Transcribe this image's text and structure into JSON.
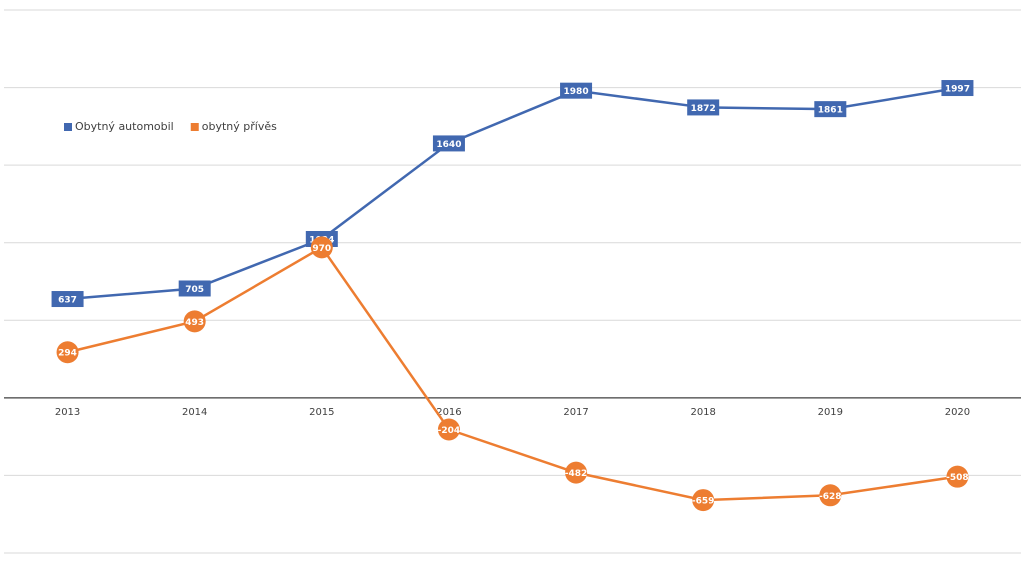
{
  "chart_data": {
    "type": "line",
    "categories": [
      "2013",
      "2014",
      "2015",
      "2016",
      "2017",
      "2018",
      "2019",
      "2020"
    ],
    "series": [
      {
        "name": "Obytný automobil",
        "color": "#4168b0",
        "values": [
          637,
          705,
          1024,
          1640,
          1980,
          1872,
          1861,
          1997
        ]
      },
      {
        "name": "obytný přívěs",
        "color": "#ed7d31",
        "values": [
          294,
          493,
          970,
          -204,
          -482,
          -659,
          -628,
          -508
        ]
      }
    ],
    "ylim": [
      -1000,
      2500
    ],
    "yticks": [
      -1000,
      -500,
      0,
      500,
      1000,
      1500,
      2000,
      2500
    ],
    "ytick_labels": false,
    "grid": true,
    "legend": "top-left",
    "data_labels": true
  }
}
